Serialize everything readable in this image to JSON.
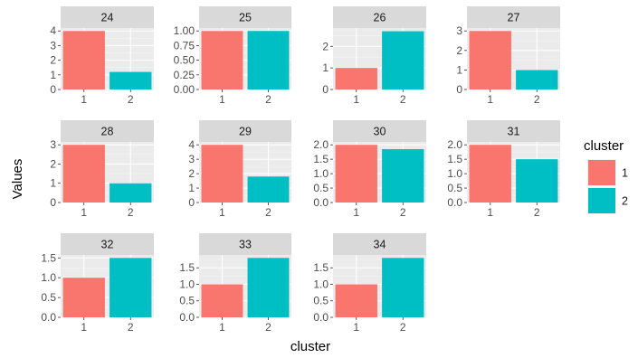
{
  "chart_data": {
    "type": "bar",
    "facet_by": "panel",
    "xlabel": "cluster",
    "ylabel": "Values",
    "categories": [
      "1",
      "2"
    ],
    "colors": {
      "1": "#f8766d",
      "2": "#00bfc4"
    },
    "legend": {
      "title": "cluster",
      "entries": [
        "1",
        "2"
      ],
      "position": "right"
    },
    "grid": true,
    "panels": [
      {
        "label": "24",
        "values": [
          4,
          1.2
        ],
        "ylim": [
          0,
          4.2
        ],
        "yticks": [
          "0",
          "1",
          "2",
          "3",
          "4"
        ],
        "ytick_values": [
          0,
          1,
          2,
          3,
          4
        ]
      },
      {
        "label": "25",
        "values": [
          1,
          1
        ],
        "ylim": [
          0,
          1.05
        ],
        "yticks": [
          "0.00",
          "0.25",
          "0.50",
          "0.75",
          "1.00"
        ],
        "ytick_values": [
          0,
          0.25,
          0.5,
          0.75,
          1
        ]
      },
      {
        "label": "26",
        "values": [
          1,
          2.7
        ],
        "ylim": [
          0,
          2.85
        ],
        "yticks": [
          "0",
          "1",
          "2"
        ],
        "ytick_values": [
          0,
          1,
          2
        ]
      },
      {
        "label": "27",
        "values": [
          3,
          1
        ],
        "ylim": [
          0,
          3.15
        ],
        "yticks": [
          "0",
          "1",
          "2",
          "3"
        ],
        "ytick_values": [
          0,
          1,
          2,
          3
        ]
      },
      {
        "label": "28",
        "values": [
          3,
          1
        ],
        "ylim": [
          0,
          3.15
        ],
        "yticks": [
          "0",
          "1",
          "2",
          "3"
        ],
        "ytick_values": [
          0,
          1,
          2,
          3
        ]
      },
      {
        "label": "29",
        "values": [
          4,
          1.8
        ],
        "ylim": [
          0,
          4.2
        ],
        "yticks": [
          "0",
          "1",
          "2",
          "3",
          "4"
        ],
        "ytick_values": [
          0,
          1,
          2,
          3,
          4
        ]
      },
      {
        "label": "30",
        "values": [
          2,
          1.85
        ],
        "ylim": [
          0,
          2.1
        ],
        "yticks": [
          "0.0",
          "0.5",
          "1.0",
          "1.5",
          "2.0"
        ],
        "ytick_values": [
          0,
          0.5,
          1,
          1.5,
          2
        ]
      },
      {
        "label": "31",
        "values": [
          2,
          1.5
        ],
        "ylim": [
          0,
          2.1
        ],
        "yticks": [
          "0.0",
          "0.5",
          "1.0",
          "1.5",
          "2.0"
        ],
        "ytick_values": [
          0,
          0.5,
          1,
          1.5,
          2
        ]
      },
      {
        "label": "32",
        "values": [
          1,
          1.5
        ],
        "ylim": [
          0,
          1.575
        ],
        "yticks": [
          "0.0",
          "0.5",
          "1.0",
          "1.5"
        ],
        "ytick_values": [
          0,
          0.5,
          1,
          1.5
        ]
      },
      {
        "label": "33",
        "values": [
          1,
          1.8
        ],
        "ylim": [
          0,
          1.89
        ],
        "yticks": [
          "0.0",
          "0.5",
          "1.0",
          "1.5"
        ],
        "ytick_values": [
          0,
          0.5,
          1,
          1.5
        ]
      },
      {
        "label": "34",
        "values": [
          1,
          1.8
        ],
        "ylim": [
          0,
          1.89
        ],
        "yticks": [
          "0.0",
          "0.5",
          "1.0",
          "1.5"
        ],
        "ytick_values": [
          0,
          0.5,
          1,
          1.5
        ]
      }
    ]
  }
}
